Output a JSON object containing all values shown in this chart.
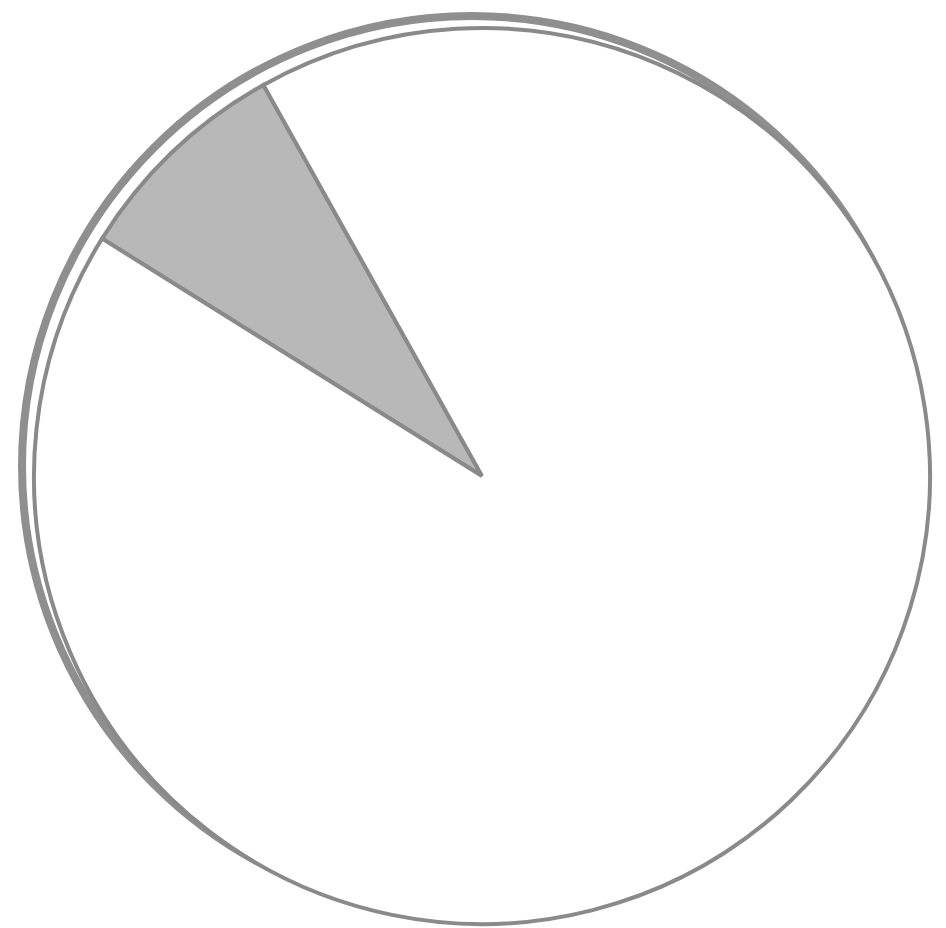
{
  "chart_data": {
    "type": "pie",
    "categories": [
      null,
      null
    ],
    "values": [
      8,
      92
    ],
    "colors": [
      "#b8b8b8",
      "#ffffff"
    ]
  }
}
